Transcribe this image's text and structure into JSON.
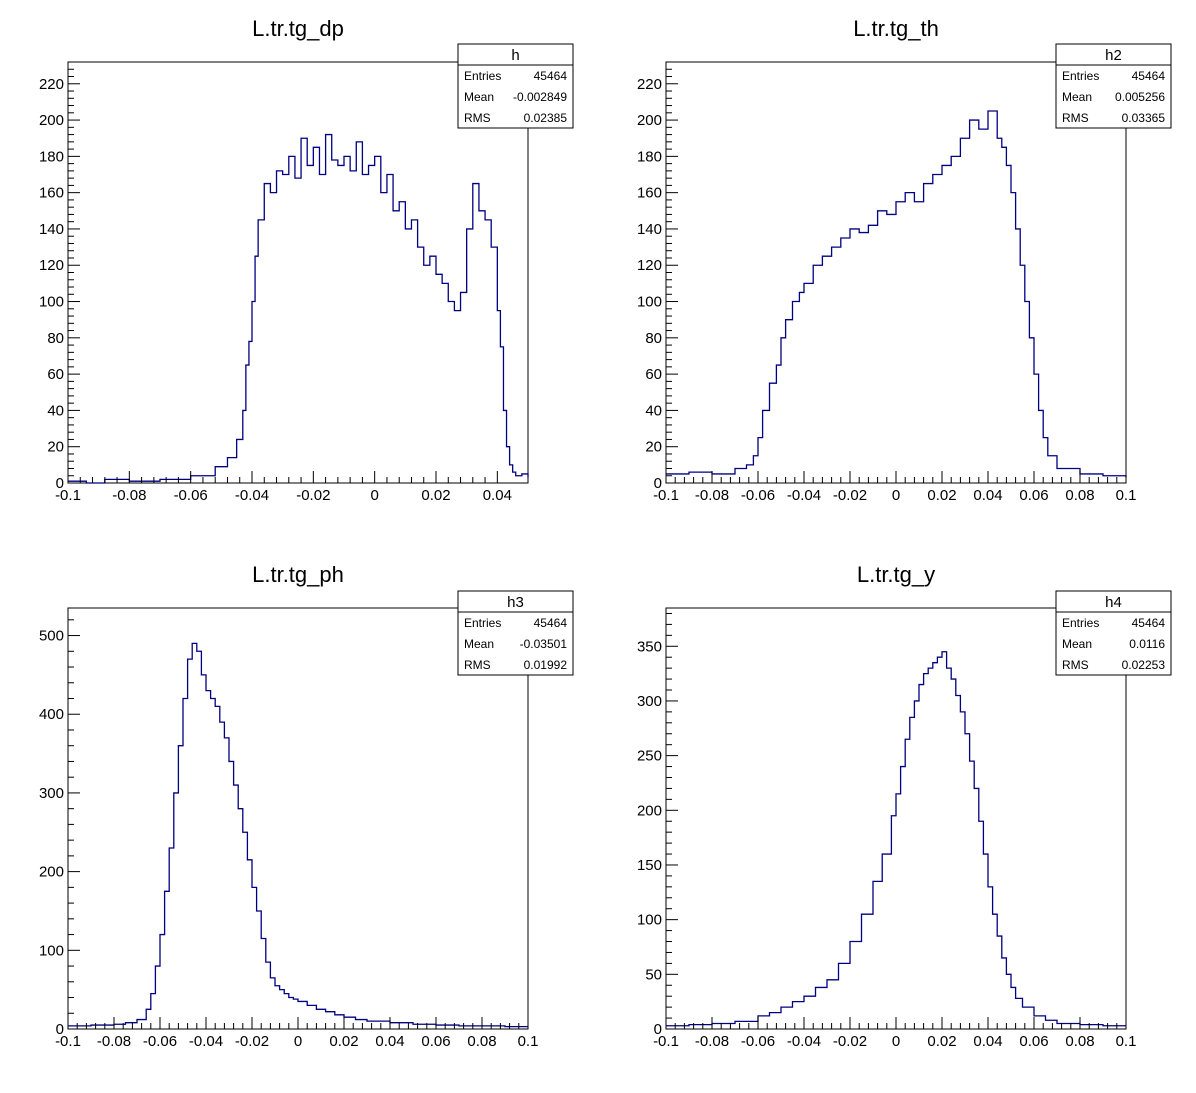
{
  "colors": {
    "line": "#000080",
    "frame": "#000000",
    "background": "#ffffff"
  },
  "chart_data": [
    {
      "type": "histogram",
      "title": "L.tr.tg_dp",
      "xlim": [
        -0.1,
        0.05
      ],
      "ylim": [
        0,
        232
      ],
      "xticks": [
        -0.1,
        -0.08,
        -0.06,
        -0.04,
        -0.02,
        0,
        0.02,
        0.04
      ],
      "xtick_labels": [
        "-0.1",
        "-0.08",
        "-0.06",
        "-0.04",
        "-0.02",
        "0",
        "0.02",
        "0.04"
      ],
      "yticks": [
        0,
        20,
        40,
        60,
        80,
        100,
        120,
        140,
        160,
        180,
        200,
        220
      ],
      "ytick_labels": [
        "0",
        "20",
        "40",
        "60",
        "80",
        "100",
        "120",
        "140",
        "160",
        "180",
        "200",
        "220"
      ],
      "stats": {
        "name": "h",
        "rows": [
          {
            "label": "Entries",
            "value": "45464"
          },
          {
            "label": "Mean",
            "value": "-0.002849"
          },
          {
            "label": "RMS",
            "value": "0.02385"
          }
        ]
      },
      "x": [
        -0.1,
        -0.094,
        -0.088,
        -0.08,
        -0.07,
        -0.06,
        -0.052,
        -0.048,
        -0.045,
        -0.043,
        -0.042,
        -0.041,
        -0.04,
        -0.039,
        -0.038,
        -0.036,
        -0.034,
        -0.032,
        -0.03,
        -0.028,
        -0.026,
        -0.024,
        -0.022,
        -0.02,
        -0.018,
        -0.016,
        -0.014,
        -0.012,
        -0.01,
        -0.008,
        -0.006,
        -0.004,
        -0.002,
        0,
        0.002,
        0.004,
        0.006,
        0.008,
        0.01,
        0.012,
        0.014,
        0.016,
        0.018,
        0.02,
        0.022,
        0.024,
        0.026,
        0.028,
        0.03,
        0.032,
        0.034,
        0.036,
        0.038,
        0.04,
        0.041,
        0.042,
        0.043,
        0.044,
        0.045,
        0.046,
        0.048,
        0.05
      ],
      "y": [
        1,
        0,
        2,
        1,
        2,
        4,
        9,
        14,
        24,
        40,
        65,
        78,
        100,
        125,
        145,
        165,
        160,
        172,
        170,
        180,
        168,
        190,
        175,
        185,
        170,
        192,
        178,
        175,
        180,
        172,
        188,
        170,
        175,
        180,
        160,
        170,
        150,
        155,
        140,
        145,
        130,
        120,
        125,
        115,
        110,
        100,
        95,
        105,
        140,
        165,
        150,
        145,
        130,
        95,
        75,
        40,
        20,
        10,
        6,
        4,
        5,
        3
      ]
    },
    {
      "type": "histogram",
      "title": "L.tr.tg_th",
      "xlim": [
        -0.1,
        0.1
      ],
      "ylim": [
        0,
        232
      ],
      "xticks": [
        -0.1,
        -0.08,
        -0.06,
        -0.04,
        -0.02,
        0,
        0.02,
        0.04,
        0.06,
        0.08,
        0.1
      ],
      "xtick_labels": [
        "-0.1",
        "-0.08",
        "-0.06",
        "-0.04",
        "-0.02",
        "0",
        "0.02",
        "0.04",
        "0.06",
        "0.08",
        "0.1"
      ],
      "yticks": [
        0,
        20,
        40,
        60,
        80,
        100,
        120,
        140,
        160,
        180,
        200,
        220
      ],
      "ytick_labels": [
        "0",
        "20",
        "40",
        "60",
        "80",
        "100",
        "120",
        "140",
        "160",
        "180",
        "200",
        "220"
      ],
      "stats": {
        "name": "h2",
        "rows": [
          {
            "label": "Entries",
            "value": "45464"
          },
          {
            "label": "Mean",
            "value": "0.005256"
          },
          {
            "label": "RMS",
            "value": "0.03365"
          }
        ]
      },
      "x": [
        -0.1,
        -0.09,
        -0.08,
        -0.07,
        -0.065,
        -0.062,
        -0.06,
        -0.058,
        -0.055,
        -0.052,
        -0.05,
        -0.048,
        -0.045,
        -0.042,
        -0.04,
        -0.036,
        -0.032,
        -0.028,
        -0.024,
        -0.02,
        -0.016,
        -0.012,
        -0.008,
        -0.004,
        0,
        0.004,
        0.008,
        0.012,
        0.016,
        0.02,
        0.024,
        0.028,
        0.032,
        0.036,
        0.04,
        0.044,
        0.046,
        0.048,
        0.05,
        0.052,
        0.054,
        0.056,
        0.058,
        0.06,
        0.062,
        0.064,
        0.066,
        0.07,
        0.08,
        0.09,
        0.1
      ],
      "y": [
        5,
        6,
        5,
        8,
        10,
        15,
        25,
        40,
        55,
        65,
        80,
        90,
        100,
        105,
        110,
        120,
        125,
        130,
        135,
        140,
        138,
        142,
        150,
        148,
        155,
        160,
        155,
        165,
        170,
        175,
        180,
        190,
        200,
        195,
        205,
        190,
        185,
        175,
        160,
        140,
        120,
        100,
        80,
        60,
        40,
        25,
        15,
        8,
        5,
        4,
        3
      ]
    },
    {
      "type": "histogram",
      "title": "L.tr.tg_ph",
      "xlim": [
        -0.1,
        0.1
      ],
      "ylim": [
        0,
        535
      ],
      "xticks": [
        -0.1,
        -0.08,
        -0.06,
        -0.04,
        -0.02,
        0,
        0.02,
        0.04,
        0.06,
        0.08,
        0.1
      ],
      "xtick_labels": [
        "-0.1",
        "-0.08",
        "-0.06",
        "-0.04",
        "-0.02",
        "0",
        "0.02",
        "0.04",
        "0.06",
        "0.08",
        "0.1"
      ],
      "yticks": [
        0,
        100,
        200,
        300,
        400,
        500
      ],
      "ytick_labels": [
        "0",
        "100",
        "200",
        "300",
        "400",
        "500"
      ],
      "stats": {
        "name": "h3",
        "rows": [
          {
            "label": "Entries",
            "value": "45464"
          },
          {
            "label": "Mean",
            "value": "-0.03501"
          },
          {
            "label": "RMS",
            "value": "0.01992"
          }
        ]
      },
      "x": [
        -0.1,
        -0.09,
        -0.08,
        -0.075,
        -0.07,
        -0.066,
        -0.064,
        -0.062,
        -0.06,
        -0.058,
        -0.056,
        -0.054,
        -0.052,
        -0.05,
        -0.048,
        -0.046,
        -0.044,
        -0.042,
        -0.04,
        -0.038,
        -0.036,
        -0.034,
        -0.032,
        -0.03,
        -0.028,
        -0.026,
        -0.024,
        -0.022,
        -0.02,
        -0.018,
        -0.016,
        -0.014,
        -0.012,
        -0.01,
        -0.008,
        -0.006,
        -0.004,
        -0.002,
        0,
        0.004,
        0.008,
        0.012,
        0.016,
        0.02,
        0.025,
        0.03,
        0.04,
        0.05,
        0.06,
        0.07,
        0.08,
        0.09,
        0.1
      ],
      "y": [
        4,
        5,
        6,
        8,
        12,
        25,
        45,
        80,
        120,
        175,
        230,
        300,
        360,
        420,
        470,
        490,
        480,
        450,
        430,
        420,
        410,
        390,
        370,
        340,
        310,
        280,
        250,
        215,
        180,
        150,
        115,
        85,
        65,
        55,
        50,
        45,
        40,
        38,
        35,
        30,
        25,
        22,
        18,
        15,
        12,
        10,
        8,
        6,
        5,
        4,
        4,
        3,
        3
      ]
    },
    {
      "type": "histogram",
      "title": "L.tr.tg_y",
      "xlim": [
        -0.1,
        0.1
      ],
      "ylim": [
        0,
        385
      ],
      "xticks": [
        -0.1,
        -0.08,
        -0.06,
        -0.04,
        -0.02,
        0,
        0.02,
        0.04,
        0.06,
        0.08,
        0.1
      ],
      "xtick_labels": [
        "-0.1",
        "-0.08",
        "-0.06",
        "-0.04",
        "-0.02",
        "0",
        "0.02",
        "0.04",
        "0.06",
        "0.08",
        "0.1"
      ],
      "yticks": [
        0,
        50,
        100,
        150,
        200,
        250,
        300,
        350
      ],
      "ytick_labels": [
        "0",
        "50",
        "100",
        "150",
        "200",
        "250",
        "300",
        "350"
      ],
      "stats": {
        "name": "h4",
        "rows": [
          {
            "label": "Entries",
            "value": "45464"
          },
          {
            "label": "Mean",
            "value": "0.0116"
          },
          {
            "label": "RMS",
            "value": "0.02253"
          }
        ]
      },
      "x": [
        -0.1,
        -0.09,
        -0.08,
        -0.07,
        -0.06,
        -0.055,
        -0.05,
        -0.045,
        -0.04,
        -0.035,
        -0.03,
        -0.025,
        -0.02,
        -0.015,
        -0.01,
        -0.006,
        -0.002,
        0,
        0.002,
        0.004,
        0.006,
        0.008,
        0.01,
        0.012,
        0.014,
        0.016,
        0.018,
        0.02,
        0.022,
        0.024,
        0.026,
        0.028,
        0.03,
        0.032,
        0.034,
        0.036,
        0.038,
        0.04,
        0.042,
        0.044,
        0.046,
        0.048,
        0.05,
        0.052,
        0.055,
        0.06,
        0.065,
        0.07,
        0.08,
        0.09,
        0.1
      ],
      "y": [
        3,
        4,
        5,
        7,
        12,
        15,
        20,
        25,
        30,
        38,
        45,
        60,
        80,
        105,
        135,
        160,
        195,
        215,
        240,
        265,
        285,
        300,
        315,
        325,
        330,
        335,
        340,
        345,
        330,
        320,
        305,
        290,
        270,
        245,
        220,
        190,
        160,
        130,
        105,
        85,
        65,
        50,
        38,
        28,
        20,
        12,
        8,
        5,
        4,
        3,
        3
      ]
    }
  ]
}
